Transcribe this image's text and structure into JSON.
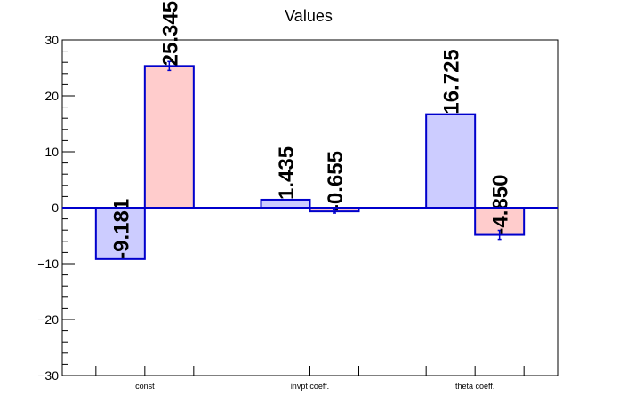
{
  "chart_data": {
    "type": "bar",
    "title": "Values",
    "xlabel": "",
    "ylabel": "",
    "ylim": [
      -30,
      30
    ],
    "yticks": [
      -30,
      -20,
      -10,
      0,
      10,
      20,
      30
    ],
    "ytick_labels": [
      "−30",
      "−20",
      "−10",
      "0",
      "10",
      "20",
      "30"
    ],
    "categories": [
      "const",
      "invpt coeff.",
      "theta coeff."
    ],
    "series": [
      {
        "values": [
          -9.181,
          1.435,
          16.725
        ],
        "errors": [
          0,
          0,
          0
        ],
        "labels": [
          "-9.181",
          "1.435",
          "16.725"
        ],
        "fill": "#ccccff",
        "stroke": "#0000cc"
      },
      {
        "values": [
          25.345,
          -0.655,
          -4.85
        ],
        "errors": [
          0.8,
          0.3,
          0.8
        ],
        "labels": [
          "25.345",
          "-0.655",
          "-4.850"
        ],
        "fill": "#ffcccc",
        "stroke": "#0000cc"
      }
    ],
    "grid": false,
    "legend": "none"
  }
}
